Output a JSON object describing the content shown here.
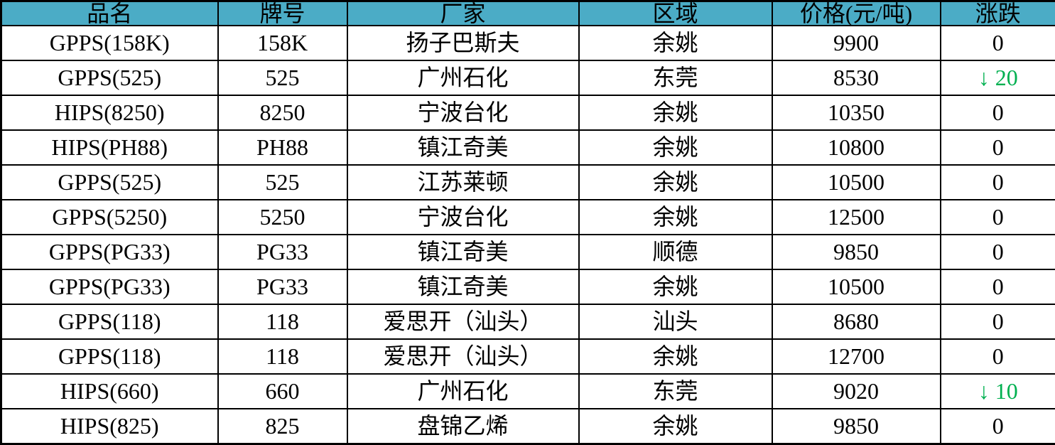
{
  "colors": {
    "header_bg": "#4BACC6",
    "header_text": "#000000",
    "body_text": "#000000",
    "down_green": "#00B050",
    "border": "#000000"
  },
  "table": {
    "columns": [
      "品名",
      "牌号",
      "厂家",
      "区域",
      "价格(元/吨)",
      "涨跌"
    ],
    "rows": [
      {
        "name": "GPPS(158K)",
        "grade": "158K",
        "maker": "扬子巴斯夫",
        "region": "余姚",
        "price": "9900",
        "change": "0",
        "down": false
      },
      {
        "name": "GPPS(525)",
        "grade": "525",
        "maker": "广州石化",
        "region": "东莞",
        "price": "8530",
        "change": "↓ 20",
        "down": true
      },
      {
        "name": "HIPS(8250)",
        "grade": "8250",
        "maker": "宁波台化",
        "region": "余姚",
        "price": "10350",
        "change": "0",
        "down": false
      },
      {
        "name": "HIPS(PH88)",
        "grade": "PH88",
        "maker": "镇江奇美",
        "region": "余姚",
        "price": "10800",
        "change": "0",
        "down": false
      },
      {
        "name": "GPPS(525)",
        "grade": "525",
        "maker": "江苏莱顿",
        "region": "余姚",
        "price": "10500",
        "change": "0",
        "down": false
      },
      {
        "name": "GPPS(5250)",
        "grade": "5250",
        "maker": "宁波台化",
        "region": "余姚",
        "price": "12500",
        "change": "0",
        "down": false
      },
      {
        "name": "GPPS(PG33)",
        "grade": "PG33",
        "maker": "镇江奇美",
        "region": "顺德",
        "price": "9850",
        "change": "0",
        "down": false
      },
      {
        "name": "GPPS(PG33)",
        "grade": "PG33",
        "maker": "镇江奇美",
        "region": "余姚",
        "price": "10500",
        "change": "0",
        "down": false
      },
      {
        "name": "GPPS(118)",
        "grade": "118",
        "maker": "爱思开（汕头）",
        "region": "汕头",
        "price": "8680",
        "change": "0",
        "down": false
      },
      {
        "name": "GPPS(118)",
        "grade": "118",
        "maker": "爱思开（汕头）",
        "region": "余姚",
        "price": "12700",
        "change": "0",
        "down": false
      },
      {
        "name": "HIPS(660)",
        "grade": "660",
        "maker": "广州石化",
        "region": "东莞",
        "price": "9020",
        "change": "↓ 10",
        "down": true
      },
      {
        "name": "HIPS(825)",
        "grade": "825",
        "maker": "盘锦乙烯",
        "region": "余姚",
        "price": "9850",
        "change": "0",
        "down": false
      }
    ]
  }
}
